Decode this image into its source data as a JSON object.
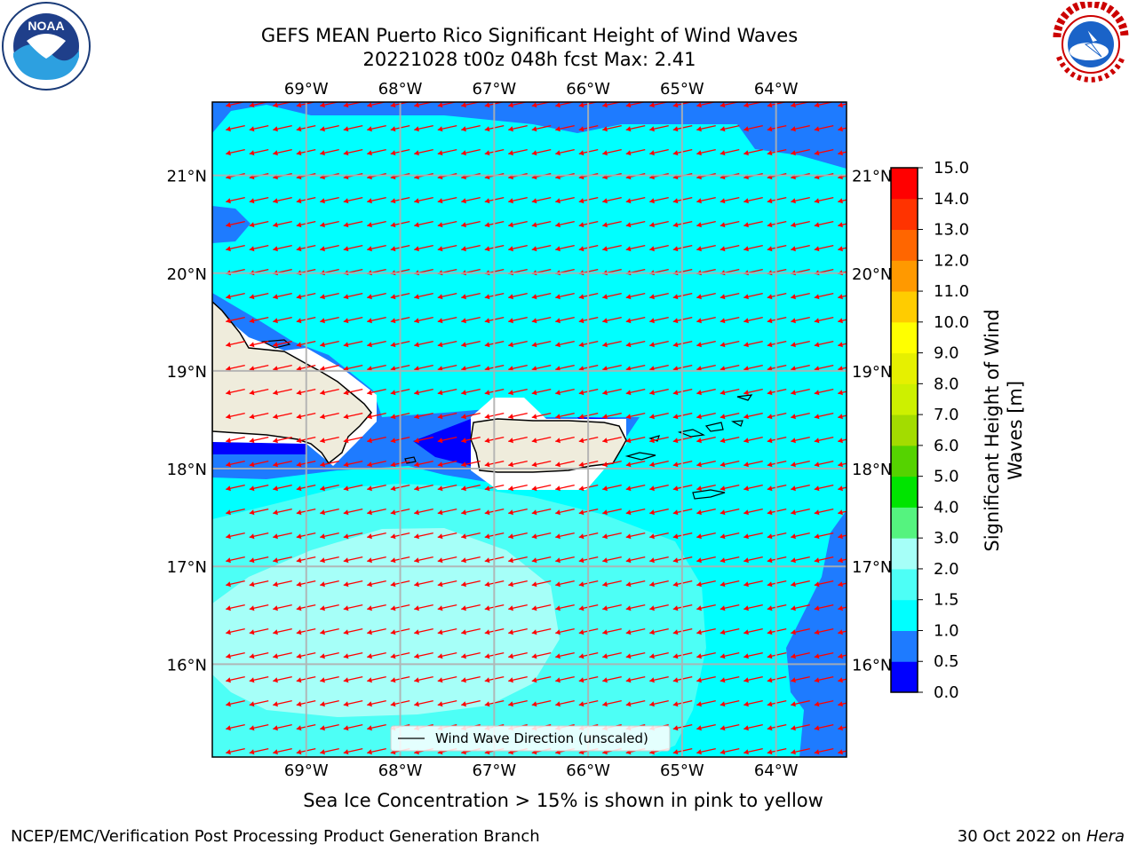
{
  "title": {
    "line1": "GEFS MEAN Puerto Rico Significant Height of Wind Waves",
    "line2": "20221028 t00z 048h fcst   Max: 2.41"
  },
  "map": {
    "lon_labels": [
      "69°W",
      "68°W",
      "67°W",
      "66°W",
      "65°W",
      "64°W"
    ],
    "lat_labels": [
      "21°N",
      "20°N",
      "19°N",
      "18°N",
      "17°N",
      "16°N"
    ],
    "lon_ticks": [
      -69,
      -68,
      -67,
      -66,
      -65,
      -64
    ],
    "lat_ticks": [
      21,
      20,
      19,
      18,
      17,
      16
    ],
    "extent": {
      "lon": [
        -70.0,
        -63.25
      ],
      "lat": [
        15.05,
        21.75
      ]
    },
    "vector_color": "#ff0000",
    "land_color": "#efecdc",
    "legend_label": "Wind Wave Direction (unscaled)"
  },
  "colorbar": {
    "label": "Significant Height of Wind Waves [m]",
    "ticks": [
      "0.0",
      "0.5",
      "1.0",
      "1.5",
      "2.0",
      "3.0",
      "4.0",
      "5.0",
      "6.0",
      "7.0",
      "8.0",
      "9.0",
      "10.0",
      "11.0",
      "12.0",
      "13.0",
      "14.0",
      "15.0"
    ],
    "colors": [
      "#0000ff",
      "#1e7bff",
      "#00ffff",
      "#4dfff6",
      "#a6fff8",
      "#55f37f",
      "#00e400",
      "#55d300",
      "#a3dc00",
      "#cdf000",
      "#e6f000",
      "#ffff00",
      "#ffcc00",
      "#ff9900",
      "#ff6600",
      "#ff3300",
      "#ff0000"
    ]
  },
  "ice_note": "Sea Ice Concentration > 15% is shown in pink to yellow",
  "footer": {
    "left": "NCEP/EMC/Verification Post Processing Product Generation Branch",
    "right_prefix": "30 Oct 2022 on ",
    "right_host": "Hera"
  },
  "logos": {
    "left": "noaa-logo",
    "right": "nws-logo"
  }
}
